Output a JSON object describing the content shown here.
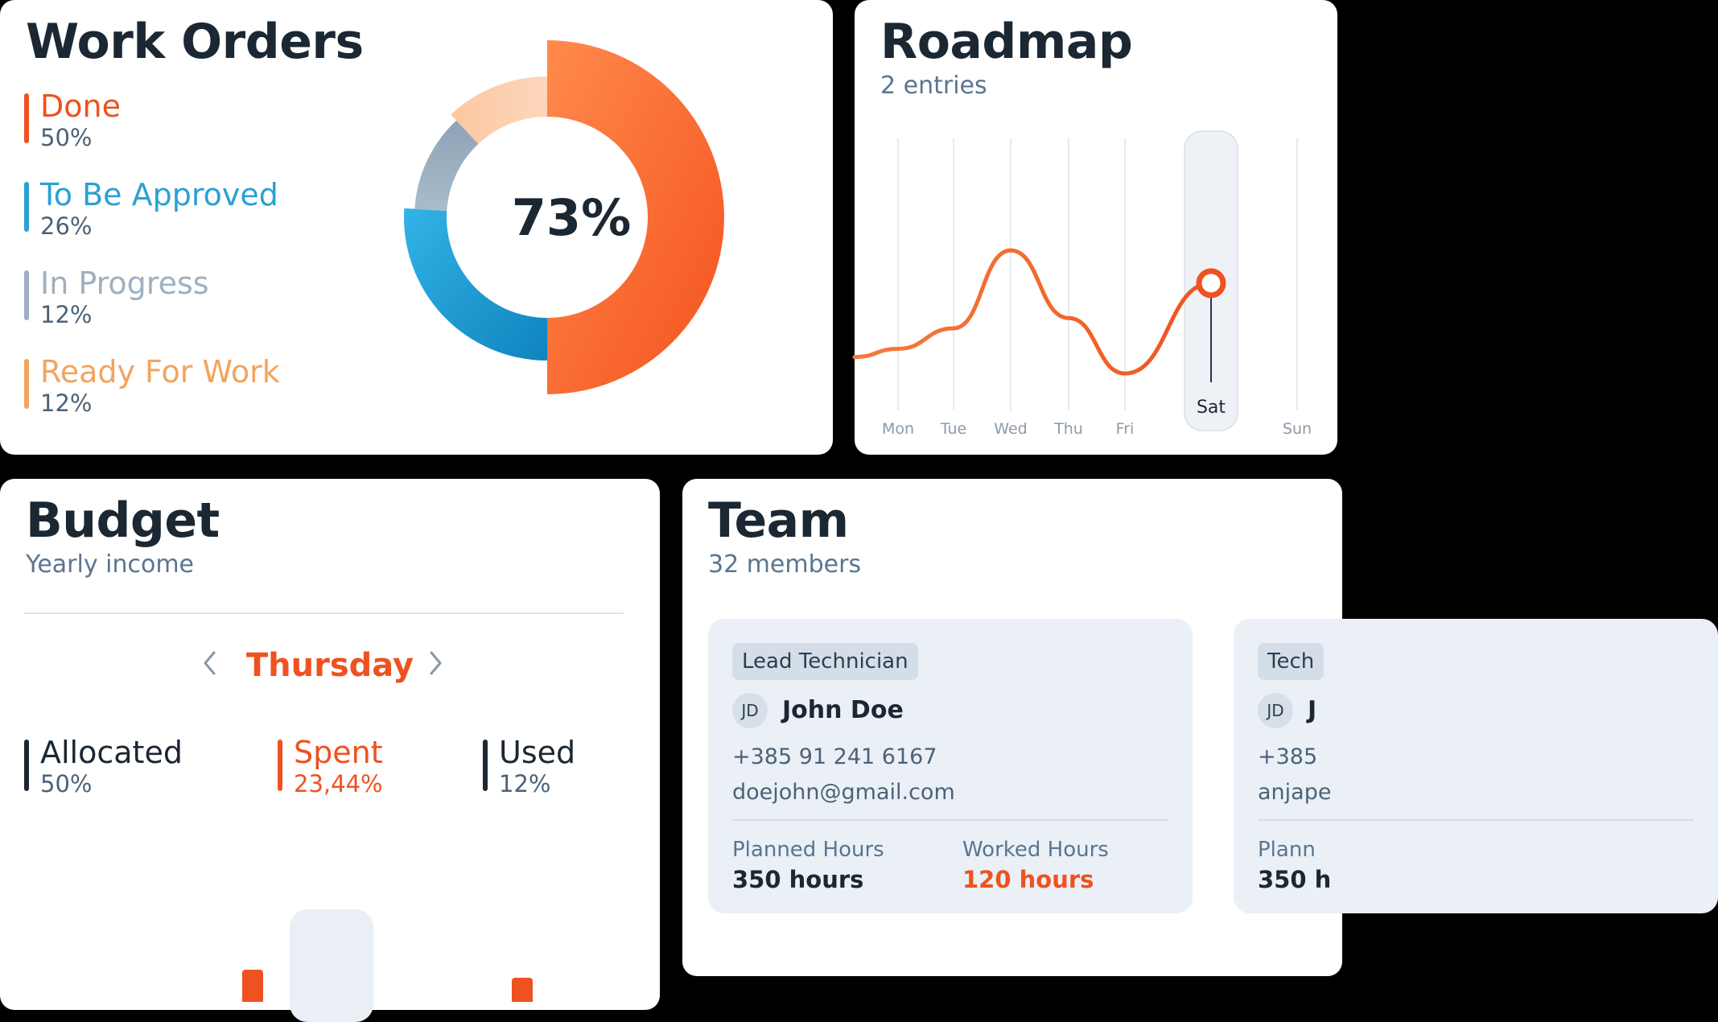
{
  "colors": {
    "accent": "#ee5220",
    "done": "#ee5220",
    "to_be_approved": "#2aa1d4",
    "in_progress": "#9eb0c0",
    "ready_for_work": "#f2a45e",
    "dark": "#1b2733"
  },
  "work_orders": {
    "title": "Work Orders",
    "center_label": "73%",
    "legend": [
      {
        "label": "Done",
        "pct": "50%",
        "color": "#ee5220"
      },
      {
        "label": "To Be Approved",
        "pct": "26%",
        "color": "#2aa1d4"
      },
      {
        "label": "In Progress",
        "pct": "12%",
        "color": "#9eb0c0"
      },
      {
        "label": "Ready For Work",
        "pct": "12%",
        "color": "#f2a45e"
      }
    ]
  },
  "chart_data": [
    {
      "type": "pie",
      "title": "Work Orders",
      "categories": [
        "Done",
        "To Be Approved",
        "In Progress",
        "Ready For Work"
      ],
      "values": [
        50,
        26,
        12,
        12
      ],
      "center_label": "73%"
    },
    {
      "type": "line",
      "title": "Roadmap",
      "categories": [
        "Mon",
        "Tue",
        "Wed",
        "Thu",
        "Fri",
        "Sat",
        "Sun"
      ],
      "values": [
        0.3,
        0.4,
        0.78,
        0.45,
        0.18,
        0.62,
        null
      ],
      "highlighted": "Sat",
      "grid": true
    }
  ],
  "roadmap": {
    "title": "Roadmap",
    "subtitle": "2 entries",
    "days": [
      "Mon",
      "Tue",
      "Wed",
      "Thu",
      "Fri",
      "Sat",
      "Sun"
    ],
    "selected_day": "Sat"
  },
  "budget": {
    "title": "Budget",
    "subtitle": "Yearly income",
    "day": "Thursday",
    "prev_icon": "chevron-left-icon",
    "next_icon": "chevron-right-icon",
    "stats": [
      {
        "label": "Allocated",
        "pct": "50%",
        "color": "#1b2733"
      },
      {
        "label": "Spent",
        "pct": "23,44%",
        "color": "#ee5220"
      },
      {
        "label": "Used",
        "pct": "12%",
        "color": "#1b2733"
      }
    ]
  },
  "team": {
    "title": "Team",
    "subtitle": "32 members",
    "members": [
      {
        "role": "Lead Technician",
        "initials": "JD",
        "name": "John Doe",
        "phone": "+385 91 241 6167",
        "email": "doejohn@gmail.com",
        "planned_label": "Planned Hours",
        "planned_value": "350 hours",
        "worked_label": "Worked Hours",
        "worked_value": "120 hours"
      },
      {
        "role": "Tech",
        "initials": "JD",
        "name": "J",
        "phone": "+385",
        "email": "anjape",
        "planned_label": "Plann",
        "planned_value": "350 h"
      }
    ]
  }
}
